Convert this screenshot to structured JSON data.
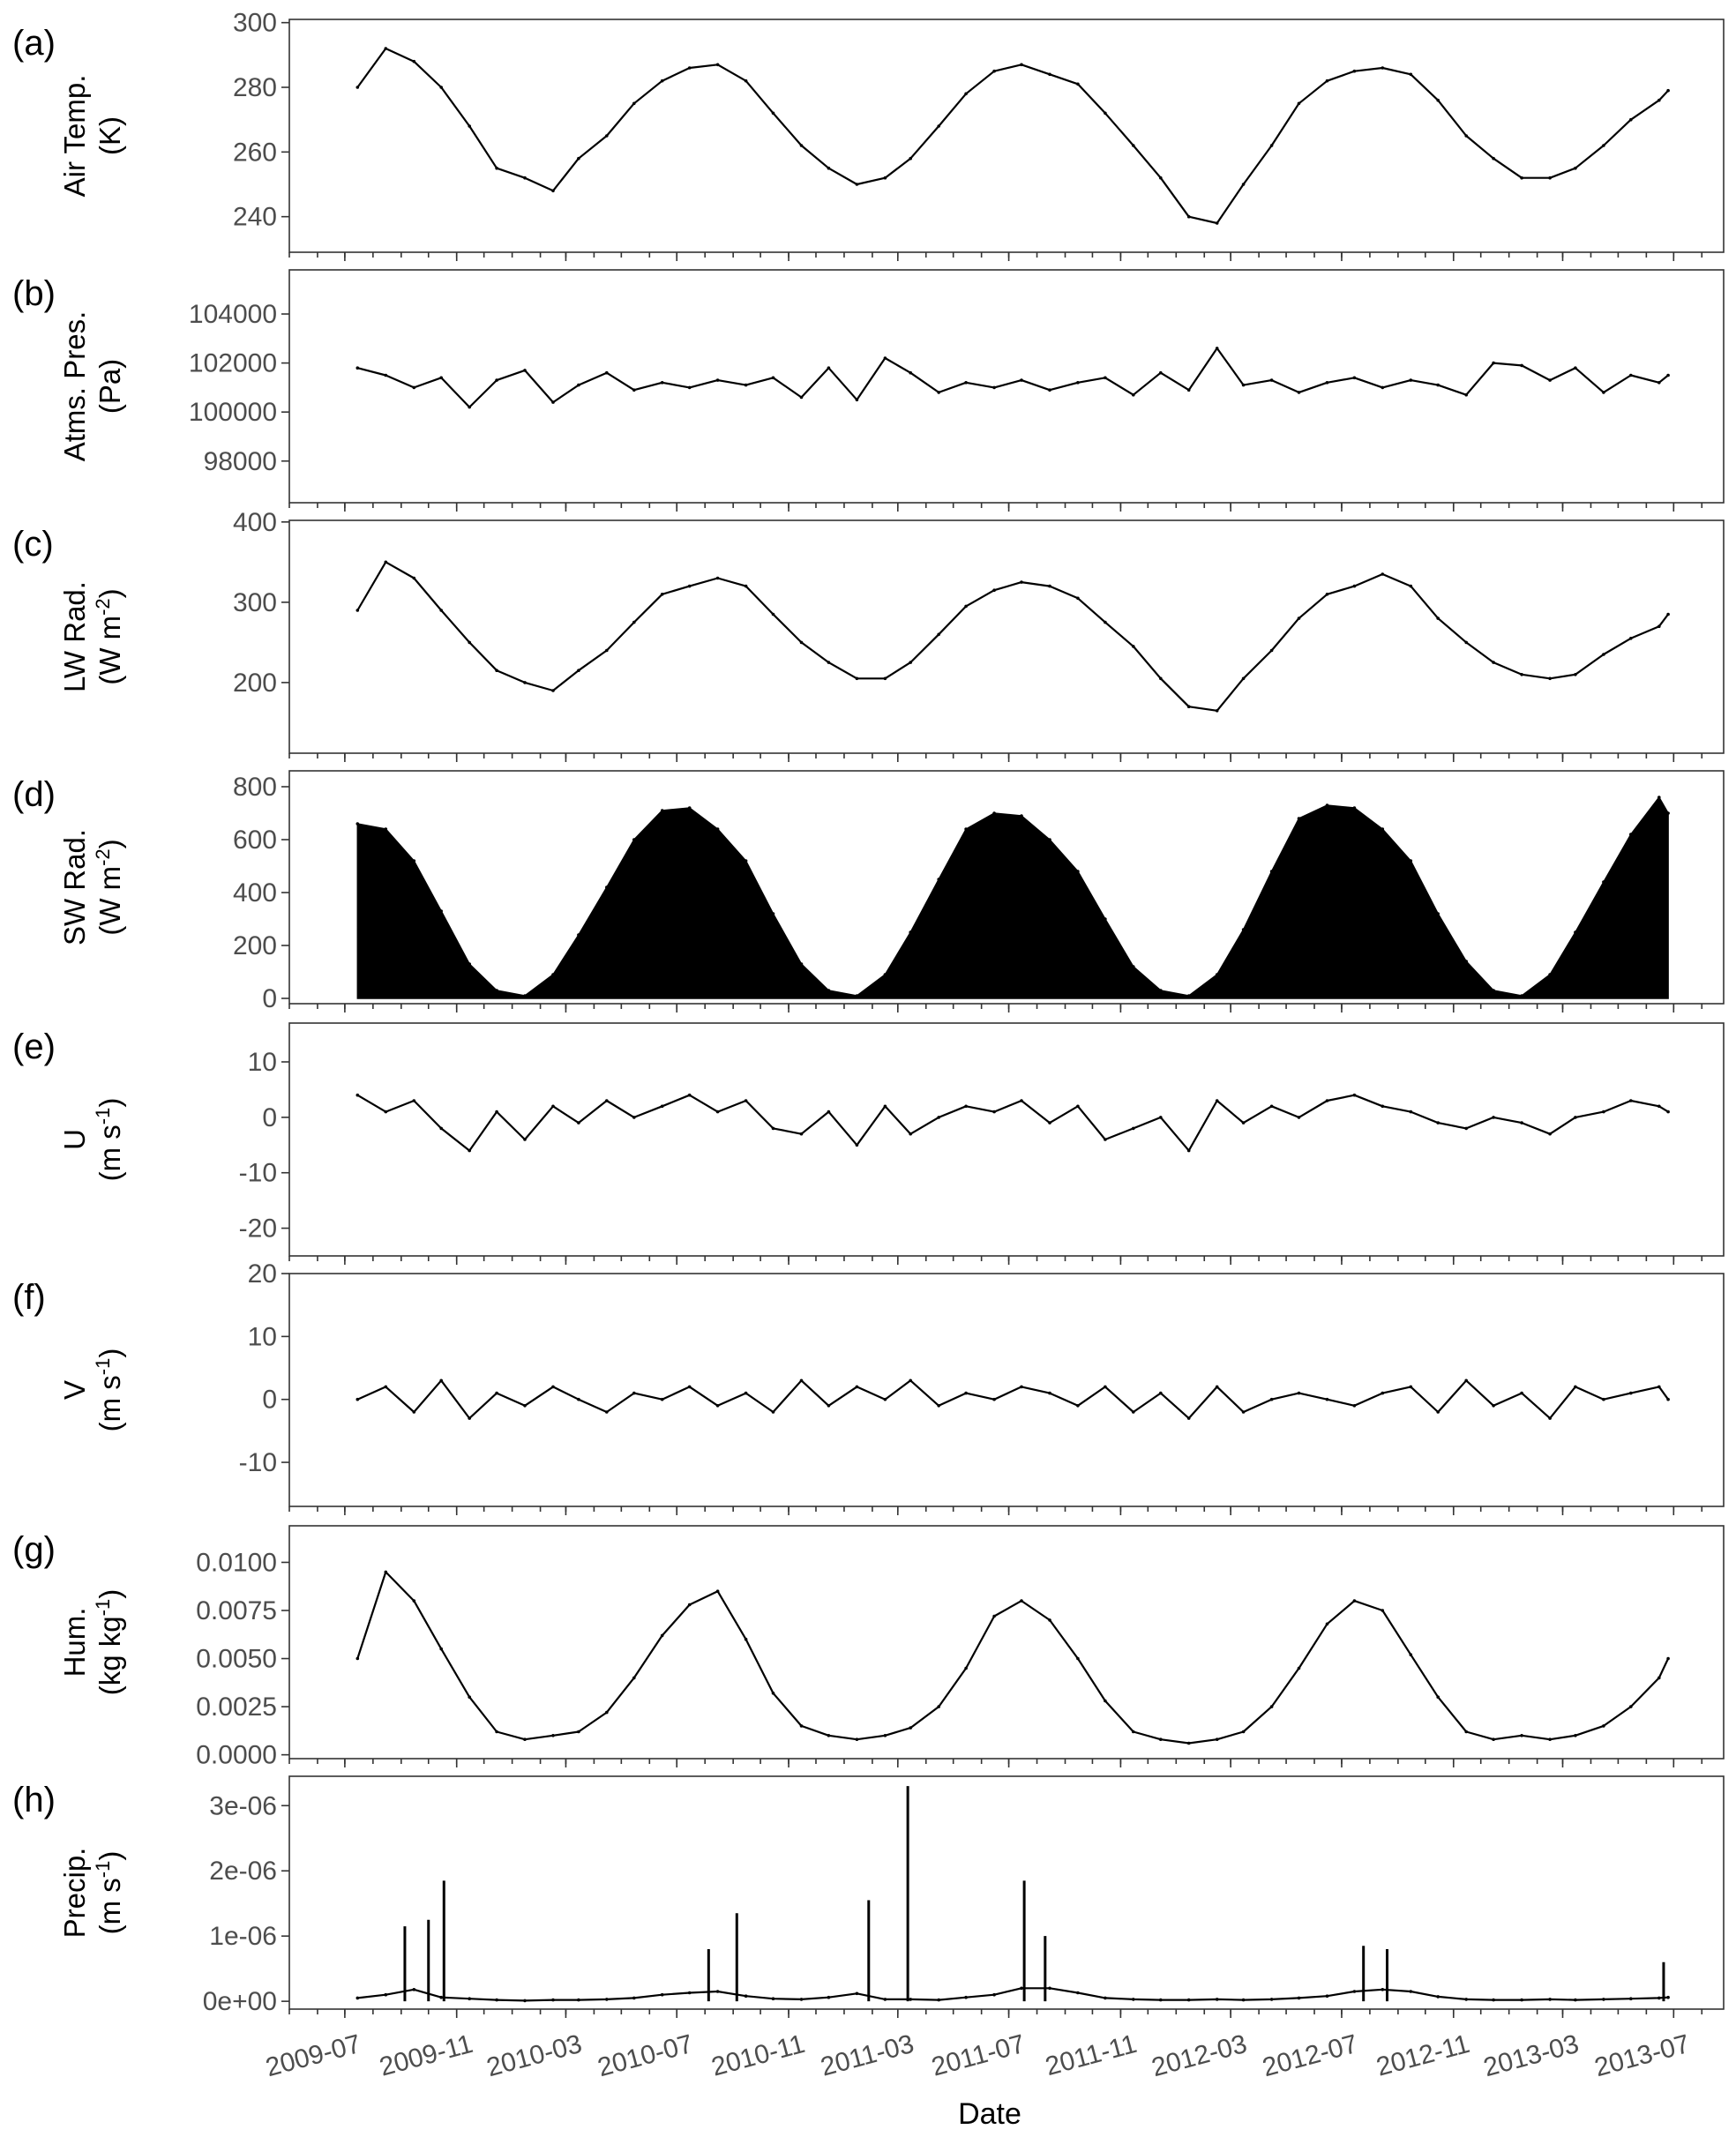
{
  "figure": {
    "xlabel": "Date",
    "x_ticks": [
      "2009-07",
      "2009-11",
      "2010-03",
      "2010-07",
      "2010-11",
      "2011-03",
      "2011-07",
      "2011-11",
      "2012-03",
      "2012-07",
      "2012-11",
      "2013-03",
      "2013-07"
    ]
  },
  "chart_data": [
    {
      "type": "line",
      "panel": "(a)",
      "ylabel_line1": "Air Temp.",
      "ylabel_line2": "(K)",
      "ylim": [
        229,
        301
      ],
      "y_ticks": [
        240,
        260,
        280,
        300
      ],
      "y_tick_labels": [
        "240",
        "260",
        "280",
        "300"
      ],
      "x": [
        "2009-07-15",
        "2009-08-15",
        "2009-09-15",
        "2009-10-15",
        "2009-11-15",
        "2009-12-15",
        "2010-01-15",
        "2010-02-15",
        "2010-03-15",
        "2010-04-15",
        "2010-05-15",
        "2010-06-15",
        "2010-07-15",
        "2010-08-15",
        "2010-09-15",
        "2010-10-15",
        "2010-11-15",
        "2010-12-15",
        "2011-01-15",
        "2011-02-15",
        "2011-03-15",
        "2011-04-15",
        "2011-05-15",
        "2011-06-15",
        "2011-07-15",
        "2011-08-15",
        "2011-09-15",
        "2011-10-15",
        "2011-11-15",
        "2011-12-15",
        "2012-01-15",
        "2012-02-15",
        "2012-03-15",
        "2012-04-15",
        "2012-05-15",
        "2012-06-15",
        "2012-07-15",
        "2012-08-15",
        "2012-09-15",
        "2012-10-15",
        "2012-11-15",
        "2012-12-15",
        "2013-01-15",
        "2013-02-15",
        "2013-03-15",
        "2013-04-15",
        "2013-05-15",
        "2013-06-15",
        "2013-06-25"
      ],
      "values": [
        280,
        292,
        288,
        280,
        268,
        255,
        252,
        248,
        258,
        265,
        275,
        282,
        286,
        287,
        282,
        272,
        262,
        255,
        250,
        252,
        258,
        268,
        278,
        285,
        287,
        284,
        281,
        272,
        262,
        252,
        240,
        238,
        250,
        262,
        275,
        282,
        285,
        286,
        284,
        276,
        265,
        258,
        252,
        252,
        255,
        262,
        270,
        276,
        279
      ]
    },
    {
      "type": "line",
      "panel": "(b)",
      "ylabel_line1": "Atms. Pres.",
      "ylabel_line2": "(Pa)",
      "ylim": [
        96300,
        105800
      ],
      "y_ticks": [
        98000,
        100000,
        102000,
        104000
      ],
      "y_tick_labels": [
        "98000",
        "100000",
        "102000",
        "104000"
      ],
      "x": [
        "2009-07-15",
        "2009-08-15",
        "2009-09-15",
        "2009-10-15",
        "2009-11-15",
        "2009-12-15",
        "2010-01-15",
        "2010-02-15",
        "2010-03-15",
        "2010-04-15",
        "2010-05-15",
        "2010-06-15",
        "2010-07-15",
        "2010-08-15",
        "2010-09-15",
        "2010-10-15",
        "2010-11-15",
        "2010-12-15",
        "2011-01-15",
        "2011-02-15",
        "2011-03-15",
        "2011-04-15",
        "2011-05-15",
        "2011-06-15",
        "2011-07-15",
        "2011-08-15",
        "2011-09-15",
        "2011-10-15",
        "2011-11-15",
        "2011-12-15",
        "2012-01-15",
        "2012-02-15",
        "2012-03-15",
        "2012-04-15",
        "2012-05-15",
        "2012-06-15",
        "2012-07-15",
        "2012-08-15",
        "2012-09-15",
        "2012-10-15",
        "2012-11-15",
        "2012-12-15",
        "2013-01-15",
        "2013-02-15",
        "2013-03-15",
        "2013-04-15",
        "2013-05-15",
        "2013-06-15",
        "2013-06-25"
      ],
      "values": [
        101800,
        101500,
        101000,
        101400,
        100200,
        101300,
        101700,
        100400,
        101100,
        101600,
        100900,
        101200,
        101000,
        101300,
        101100,
        101400,
        100600,
        101800,
        100500,
        102200,
        101600,
        100800,
        101200,
        101000,
        101300,
        100900,
        101200,
        101400,
        100700,
        101600,
        100900,
        102600,
        101100,
        101300,
        100800,
        101200,
        101400,
        101000,
        101300,
        101100,
        100700,
        102000,
        101900,
        101300,
        101800,
        100800,
        101500,
        101200,
        101500
      ]
    },
    {
      "type": "line",
      "panel": "(c)",
      "ylabel_line1": "LW Rad.",
      "ylabel_line2": "(W m-2)",
      "ylim": [
        112,
        402
      ],
      "y_ticks": [
        200,
        300,
        400
      ],
      "y_tick_labels": [
        "200",
        "300",
        "400"
      ],
      "x": [
        "2009-07-15",
        "2009-08-15",
        "2009-09-15",
        "2009-10-15",
        "2009-11-15",
        "2009-12-15",
        "2010-01-15",
        "2010-02-15",
        "2010-03-15",
        "2010-04-15",
        "2010-05-15",
        "2010-06-15",
        "2010-07-15",
        "2010-08-15",
        "2010-09-15",
        "2010-10-15",
        "2010-11-15",
        "2010-12-15",
        "2011-01-15",
        "2011-02-15",
        "2011-03-15",
        "2011-04-15",
        "2011-05-15",
        "2011-06-15",
        "2011-07-15",
        "2011-08-15",
        "2011-09-15",
        "2011-10-15",
        "2011-11-15",
        "2011-12-15",
        "2012-01-15",
        "2012-02-15",
        "2012-03-15",
        "2012-04-15",
        "2012-05-15",
        "2012-06-15",
        "2012-07-15",
        "2012-08-15",
        "2012-09-15",
        "2012-10-15",
        "2012-11-15",
        "2012-12-15",
        "2013-01-15",
        "2013-02-15",
        "2013-03-15",
        "2013-04-15",
        "2013-05-15",
        "2013-06-15",
        "2013-06-25"
      ],
      "values": [
        290,
        350,
        330,
        290,
        250,
        215,
        200,
        190,
        215,
        240,
        275,
        310,
        320,
        330,
        320,
        285,
        250,
        225,
        205,
        205,
        225,
        260,
        295,
        315,
        325,
        320,
        305,
        275,
        245,
        205,
        170,
        165,
        205,
        240,
        280,
        310,
        320,
        335,
        320,
        280,
        250,
        225,
        210,
        205,
        210,
        235,
        255,
        270,
        285
      ]
    },
    {
      "type": "area",
      "panel": "(d)",
      "ylabel_line1": "SW Rad.",
      "ylabel_line2": "(W m-2)",
      "ylim": [
        -20,
        860
      ],
      "y_ticks": [
        0,
        200,
        400,
        600,
        800
      ],
      "y_tick_labels": [
        "0",
        "200",
        "400",
        "600",
        "800"
      ],
      "x": [
        "2009-07-15",
        "2009-08-15",
        "2009-09-15",
        "2009-10-15",
        "2009-11-15",
        "2009-12-15",
        "2010-01-15",
        "2010-02-15",
        "2010-03-15",
        "2010-04-15",
        "2010-05-15",
        "2010-06-15",
        "2010-07-15",
        "2010-08-15",
        "2010-09-15",
        "2010-10-15",
        "2010-11-15",
        "2010-12-15",
        "2011-01-15",
        "2011-02-15",
        "2011-03-15",
        "2011-04-15",
        "2011-05-15",
        "2011-06-15",
        "2011-07-15",
        "2011-08-15",
        "2011-09-15",
        "2011-10-15",
        "2011-11-15",
        "2011-12-15",
        "2012-01-15",
        "2012-02-15",
        "2012-03-15",
        "2012-04-15",
        "2012-05-15",
        "2012-06-15",
        "2012-07-15",
        "2012-08-15",
        "2012-09-15",
        "2012-10-15",
        "2012-11-15",
        "2012-12-15",
        "2013-01-15",
        "2013-02-15",
        "2013-03-15",
        "2013-04-15",
        "2013-05-15",
        "2013-06-15",
        "2013-06-25"
      ],
      "values": [
        660,
        640,
        520,
        330,
        130,
        30,
        10,
        90,
        240,
        420,
        600,
        710,
        720,
        640,
        520,
        320,
        130,
        30,
        10,
        90,
        250,
        450,
        640,
        700,
        690,
        600,
        480,
        300,
        120,
        30,
        10,
        90,
        260,
        480,
        680,
        730,
        720,
        640,
        520,
        320,
        140,
        30,
        10,
        90,
        250,
        440,
        620,
        760,
        700
      ]
    },
    {
      "type": "line",
      "panel": "(e)",
      "ylabel_line1": "U",
      "ylabel_line2": "(m s-1)",
      "ylim": [
        -25,
        17
      ],
      "y_ticks": [
        -20,
        -10,
        0,
        10
      ],
      "y_tick_labels": [
        "-20",
        "-10",
        "0",
        "10"
      ],
      "x": [
        "2009-07-15",
        "2009-08-15",
        "2009-09-15",
        "2009-10-15",
        "2009-11-15",
        "2009-12-15",
        "2010-01-15",
        "2010-02-15",
        "2010-03-15",
        "2010-04-15",
        "2010-05-15",
        "2010-06-15",
        "2010-07-15",
        "2010-08-15",
        "2010-09-15",
        "2010-10-15",
        "2010-11-15",
        "2010-12-15",
        "2011-01-15",
        "2011-02-15",
        "2011-03-15",
        "2011-04-15",
        "2011-05-15",
        "2011-06-15",
        "2011-07-15",
        "2011-08-15",
        "2011-09-15",
        "2011-10-15",
        "2011-11-15",
        "2011-12-15",
        "2012-01-15",
        "2012-02-15",
        "2012-03-15",
        "2012-04-15",
        "2012-05-15",
        "2012-06-15",
        "2012-07-15",
        "2012-08-15",
        "2012-09-15",
        "2012-10-15",
        "2012-11-15",
        "2012-12-15",
        "2013-01-15",
        "2013-02-15",
        "2013-03-15",
        "2013-04-15",
        "2013-05-15",
        "2013-06-15",
        "2013-06-25"
      ],
      "values": [
        4,
        1,
        3,
        -2,
        -6,
        1,
        -4,
        2,
        -1,
        3,
        0,
        2,
        4,
        1,
        3,
        -2,
        -3,
        1,
        -5,
        2,
        -3,
        0,
        2,
        1,
        3,
        -1,
        2,
        -4,
        -2,
        0,
        -6,
        3,
        -1,
        2,
        0,
        3,
        4,
        2,
        1,
        -1,
        -2,
        0,
        -1,
        -3,
        0,
        1,
        3,
        2,
        1
      ]
    },
    {
      "type": "line",
      "panel": "(f)",
      "ylabel_line1": "V",
      "ylabel_line2": "(m s-1)",
      "ylim": [
        -17,
        20
      ],
      "y_ticks": [
        -10,
        0,
        10,
        20
      ],
      "y_tick_labels": [
        "-10",
        "0",
        "10",
        "20"
      ],
      "x": [
        "2009-07-15",
        "2009-08-15",
        "2009-09-15",
        "2009-10-15",
        "2009-11-15",
        "2009-12-15",
        "2010-01-15",
        "2010-02-15",
        "2010-03-15",
        "2010-04-15",
        "2010-05-15",
        "2010-06-15",
        "2010-07-15",
        "2010-08-15",
        "2010-09-15",
        "2010-10-15",
        "2010-11-15",
        "2010-12-15",
        "2011-01-15",
        "2011-02-15",
        "2011-03-15",
        "2011-04-15",
        "2011-05-15",
        "2011-06-15",
        "2011-07-15",
        "2011-08-15",
        "2011-09-15",
        "2011-10-15",
        "2011-11-15",
        "2011-12-15",
        "2012-01-15",
        "2012-02-15",
        "2012-03-15",
        "2012-04-15",
        "2012-05-15",
        "2012-06-15",
        "2012-07-15",
        "2012-08-15",
        "2012-09-15",
        "2012-10-15",
        "2012-11-15",
        "2012-12-15",
        "2013-01-15",
        "2013-02-15",
        "2013-03-15",
        "2013-04-15",
        "2013-05-15",
        "2013-06-15",
        "2013-06-25"
      ],
      "values": [
        0,
        2,
        -2,
        3,
        -3,
        1,
        -1,
        2,
        0,
        -2,
        1,
        0,
        2,
        -1,
        1,
        -2,
        3,
        -1,
        2,
        0,
        3,
        -1,
        1,
        0,
        2,
        1,
        -1,
        2,
        -2,
        1,
        -3,
        2,
        -2,
        0,
        1,
        0,
        -1,
        1,
        2,
        -2,
        3,
        -1,
        1,
        -3,
        2,
        0,
        1,
        2,
        0
      ]
    },
    {
      "type": "line",
      "panel": "(g)",
      "ylabel_line1": "Hum.",
      "ylabel_line2": "(kg kg-1)",
      "ylim": [
        -0.0002,
        0.0119
      ],
      "y_ticks": [
        0,
        0.0025,
        0.005,
        0.0075,
        0.01
      ],
      "y_tick_labels": [
        "0.0000",
        "0.0025",
        "0.0050",
        "0.0075",
        "0.0100"
      ],
      "x": [
        "2009-07-15",
        "2009-08-15",
        "2009-09-15",
        "2009-10-15",
        "2009-11-15",
        "2009-12-15",
        "2010-01-15",
        "2010-02-15",
        "2010-03-15",
        "2010-04-15",
        "2010-05-15",
        "2010-06-15",
        "2010-07-15",
        "2010-08-15",
        "2010-09-15",
        "2010-10-15",
        "2010-11-15",
        "2010-12-15",
        "2011-01-15",
        "2011-02-15",
        "2011-03-15",
        "2011-04-15",
        "2011-05-15",
        "2011-06-15",
        "2011-07-15",
        "2011-08-15",
        "2011-09-15",
        "2011-10-15",
        "2011-11-15",
        "2011-12-15",
        "2012-01-15",
        "2012-02-15",
        "2012-03-15",
        "2012-04-15",
        "2012-05-15",
        "2012-06-15",
        "2012-07-15",
        "2012-08-15",
        "2012-09-15",
        "2012-10-15",
        "2012-11-15",
        "2012-12-15",
        "2013-01-15",
        "2013-02-15",
        "2013-03-15",
        "2013-04-15",
        "2013-05-15",
        "2013-06-15",
        "2013-06-25"
      ],
      "values": [
        0.005,
        0.0095,
        0.008,
        0.0055,
        0.003,
        0.0012,
        0.0008,
        0.001,
        0.0012,
        0.0022,
        0.004,
        0.0062,
        0.0078,
        0.0085,
        0.006,
        0.0032,
        0.0015,
        0.001,
        0.0008,
        0.001,
        0.0014,
        0.0025,
        0.0045,
        0.0072,
        0.008,
        0.007,
        0.005,
        0.0028,
        0.0012,
        0.0008,
        0.0006,
        0.0008,
        0.0012,
        0.0025,
        0.0045,
        0.0068,
        0.008,
        0.0075,
        0.0052,
        0.003,
        0.0012,
        0.0008,
        0.001,
        0.0008,
        0.001,
        0.0015,
        0.0025,
        0.004,
        0.005
      ]
    },
    {
      "type": "line",
      "panel": "(h)",
      "ylabel_line1": "Precip.",
      "ylabel_line2": "(m s-1)",
      "ylim": [
        -1.2e-07,
        3.45e-06
      ],
      "y_ticks": [
        0,
        1e-06,
        2e-06,
        3e-06
      ],
      "y_tick_labels": [
        "0e+00",
        "1e-06",
        "2e-06",
        "3e-06"
      ],
      "x": [
        "2009-07-15",
        "2009-08-15",
        "2009-09-15",
        "2009-10-15",
        "2009-11-15",
        "2009-12-15",
        "2010-01-15",
        "2010-02-15",
        "2010-03-15",
        "2010-04-15",
        "2010-05-15",
        "2010-06-15",
        "2010-07-15",
        "2010-08-15",
        "2010-09-15",
        "2010-10-15",
        "2010-11-15",
        "2010-12-15",
        "2011-01-15",
        "2011-02-15",
        "2011-03-15",
        "2011-04-15",
        "2011-05-15",
        "2011-06-15",
        "2011-07-15",
        "2011-08-15",
        "2011-09-15",
        "2011-10-15",
        "2011-11-15",
        "2011-12-15",
        "2012-01-15",
        "2012-02-15",
        "2012-03-15",
        "2012-04-15",
        "2012-05-15",
        "2012-06-15",
        "2012-07-15",
        "2012-08-15",
        "2012-09-15",
        "2012-10-15",
        "2012-11-15",
        "2012-12-15",
        "2013-01-15",
        "2013-02-15",
        "2013-03-15",
        "2013-04-15",
        "2013-05-15",
        "2013-06-15",
        "2013-06-25"
      ],
      "values": [
        5e-08,
        1e-07,
        1.8e-07,
        6e-08,
        4e-08,
        2e-08,
        1e-08,
        2e-08,
        2e-08,
        3e-08,
        5e-08,
        1e-07,
        1.3e-07,
        1.5e-07,
        8e-08,
        4e-08,
        3e-08,
        6e-08,
        1.2e-07,
        3e-08,
        3e-08,
        2e-08,
        6e-08,
        1e-07,
        2e-07,
        2e-07,
        1.3e-07,
        5e-08,
        3e-08,
        2e-08,
        2e-08,
        3e-08,
        2e-08,
        3e-08,
        5e-08,
        8e-08,
        1.5e-07,
        1.8e-07,
        1.5e-07,
        7e-08,
        3e-08,
        2e-08,
        2e-08,
        3e-08,
        2e-08,
        3e-08,
        4e-08,
        5e-08,
        6e-08
      ],
      "peaks": [
        {
          "x": "2009-09-05",
          "value": 1.15e-06
        },
        {
          "x": "2009-10-01",
          "value": 1.25e-06
        },
        {
          "x": "2009-10-18",
          "value": 1.85e-06
        },
        {
          "x": "2010-08-05",
          "value": 8e-07
        },
        {
          "x": "2010-09-05",
          "value": 1.35e-06
        },
        {
          "x": "2011-01-28",
          "value": 1.55e-06
        },
        {
          "x": "2011-03-12",
          "value": 3.3e-06
        },
        {
          "x": "2011-07-18",
          "value": 1.85e-06
        },
        {
          "x": "2011-08-10",
          "value": 1e-06
        },
        {
          "x": "2012-07-25",
          "value": 8.5e-07
        },
        {
          "x": "2012-08-20",
          "value": 8e-07
        },
        {
          "x": "2013-06-20",
          "value": 6e-07
        }
      ]
    }
  ]
}
